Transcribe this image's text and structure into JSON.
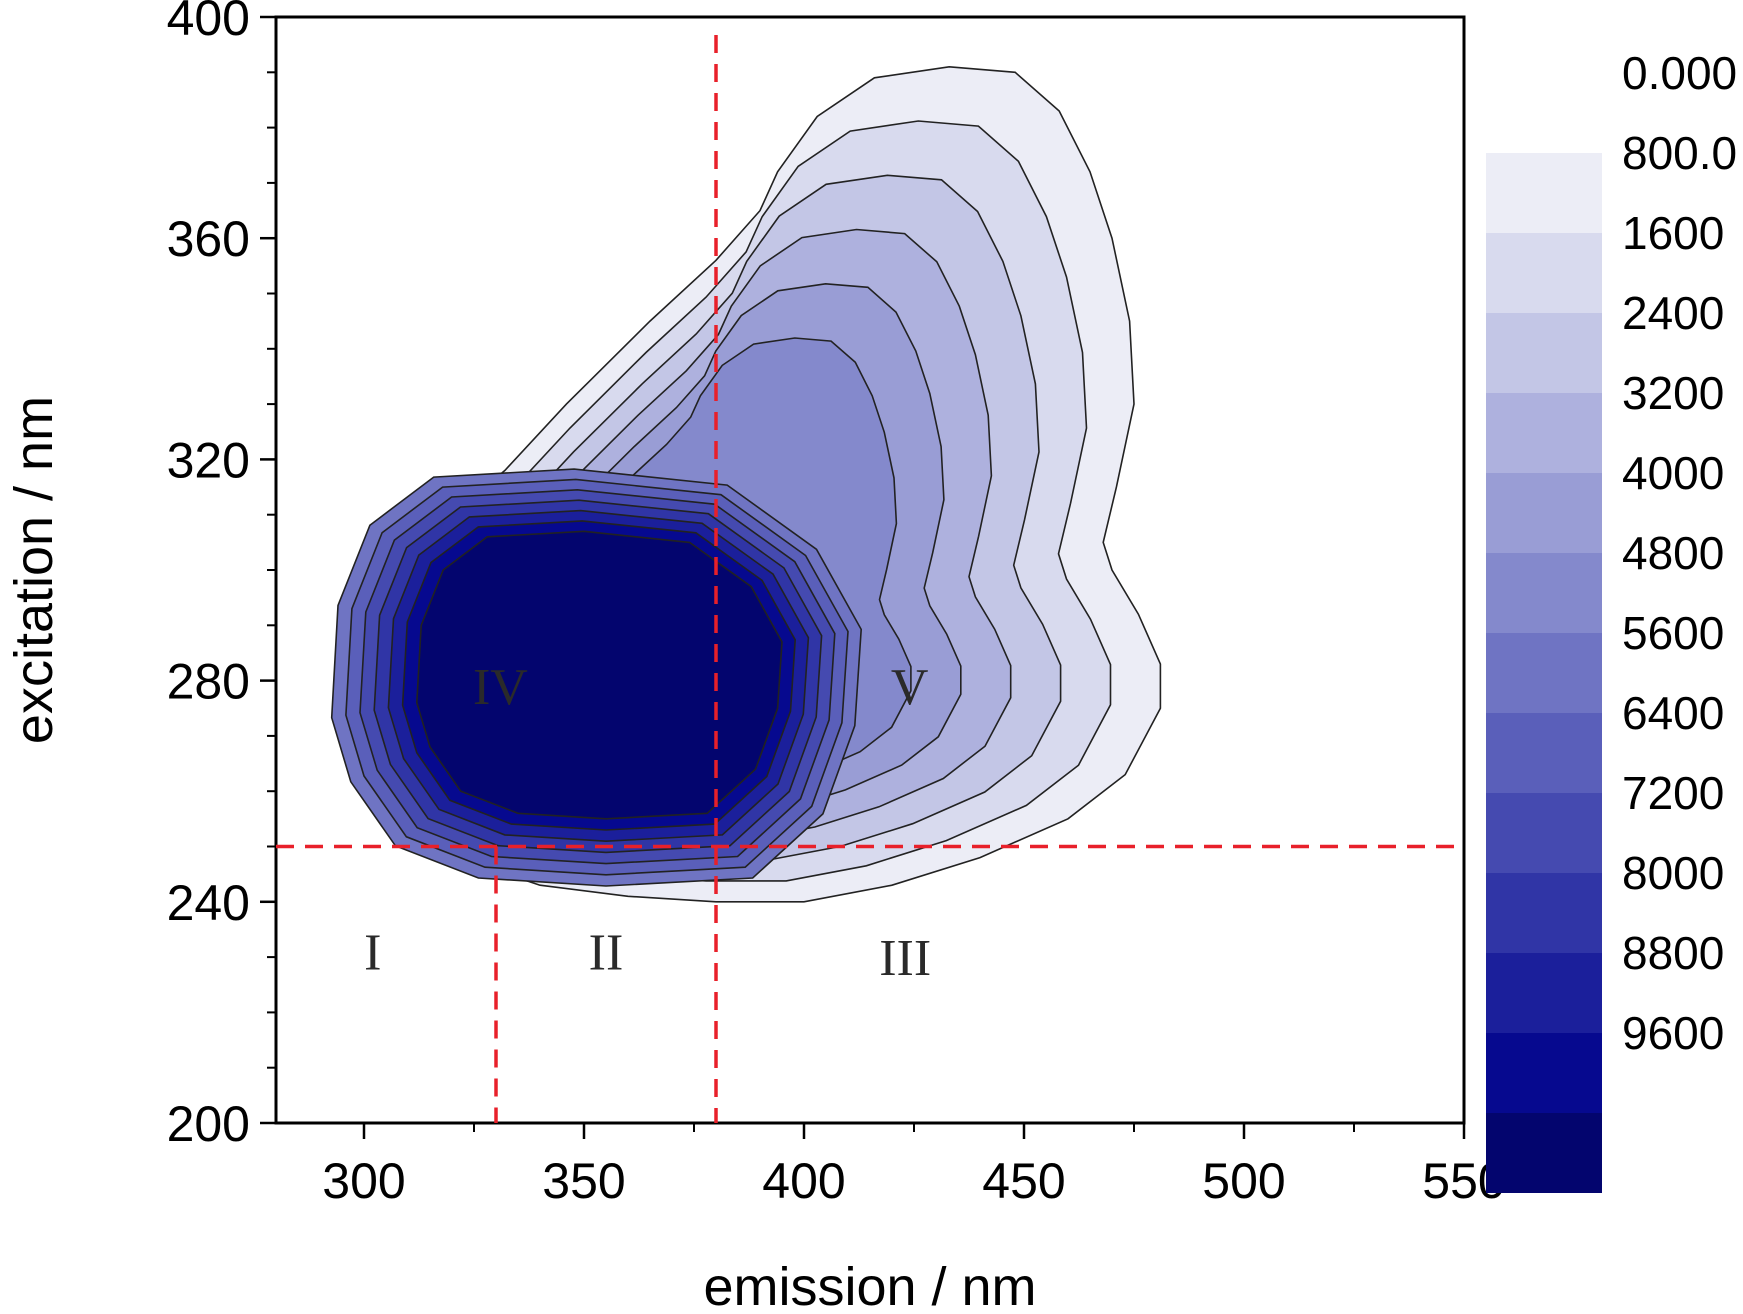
{
  "chart_data": {
    "type": "contour",
    "xlabel": "emission / nm",
    "ylabel": "excitation / nm",
    "xlim": [
      280,
      550
    ],
    "ylim": [
      200,
      400
    ],
    "x_ticks": [
      300,
      350,
      400,
      450,
      500,
      550
    ],
    "y_ticks": [
      200,
      240,
      280,
      320,
      360,
      400
    ],
    "colorbar": {
      "labels": [
        "0.000",
        "800.0",
        "1600",
        "2400",
        "3200",
        "4000",
        "4800",
        "5600",
        "6400",
        "7200",
        "8000",
        "8800",
        "9600"
      ],
      "levels": [
        0,
        800,
        1600,
        2400,
        3200,
        4000,
        4800,
        5600,
        6400,
        7200,
        8000,
        8800,
        9600
      ],
      "colors": [
        "#ffffff",
        "#ecedf6",
        "#d8daee",
        "#c3c6e6",
        "#aeb1de",
        "#999dd5",
        "#8489cc",
        "#6f74c3",
        "#5a5fba",
        "#454ab0",
        "#3035a6",
        "#1b1f9b",
        "#06098f",
        "#03056e"
      ]
    },
    "divider_lines": {
      "horizontal_excitation": 250,
      "vertical_emission_full": 380,
      "vertical_emission_lower": 330
    },
    "regions": [
      {
        "label": "I",
        "emission": 302,
        "excitation": 231
      },
      {
        "label": "II",
        "emission": 355,
        "excitation": 231
      },
      {
        "label": "III",
        "emission": 423,
        "excitation": 230
      },
      {
        "label": "IV",
        "emission": 331,
        "excitation": 279
      },
      {
        "label": "V",
        "emission": 424,
        "excitation": 279
      }
    ],
    "contour_center": {
      "emission": 355,
      "excitation": 282
    },
    "peak_level": 9600
  }
}
